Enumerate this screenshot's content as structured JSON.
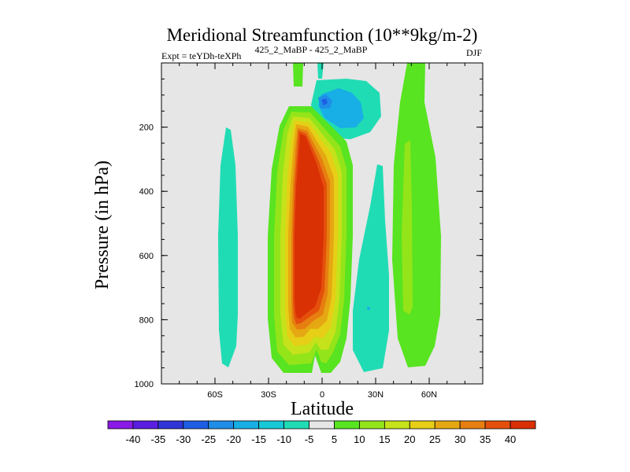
{
  "chart_data": {
    "type": "contour",
    "title": "Meridional Streamfunction (10**9kg/m-2)",
    "expt_label": "Expt = teYDh-teXPh",
    "experiment_difference": "425_2_MaBP - 425_2_MaBP",
    "season": "DJF",
    "xlabel": "Latitude",
    "ylabel": "Pressure (in hPa)",
    "xlim": [
      -90,
      90
    ],
    "ylim": [
      1000,
      0
    ],
    "xticks": [
      {
        "value": -60,
        "label": "60S"
      },
      {
        "value": -30,
        "label": "30S"
      },
      {
        "value": 0,
        "label": "0"
      },
      {
        "value": 30,
        "label": "30N"
      },
      {
        "value": 60,
        "label": "60N"
      }
    ],
    "yticks": [
      200,
      400,
      600,
      800,
      1000
    ],
    "colorbar": {
      "levels": [
        -40,
        -35,
        -30,
        -25,
        -20,
        -15,
        -10,
        -5,
        5,
        10,
        15,
        20,
        25,
        30,
        35,
        40
      ],
      "colors": [
        "#8a1ae6",
        "#5a1ee0",
        "#2f35d6",
        "#1e5ee4",
        "#1f8ee8",
        "#18aee6",
        "#17c8d6",
        "#20dcb4",
        "#e6e6e6",
        "#58e420",
        "#94e41a",
        "#c6e21a",
        "#e6cf16",
        "#e6a812",
        "#e67f10",
        "#e4500c",
        "#d93004"
      ]
    },
    "background": "#e6e6e6",
    "features": [
      {
        "name": "tropical-positive-cell",
        "lat_center": -10,
        "p_top": 130,
        "p_bottom": 960,
        "peak": 45
      },
      {
        "name": "southern-negative-cell",
        "lat_center": -52,
        "p_top": 200,
        "p_bottom": 940,
        "peak": -8
      },
      {
        "name": "upper-equatorial-negative",
        "lat_center": 3,
        "p_top": 40,
        "p_bottom": 230,
        "peak": -22
      },
      {
        "name": "subtropical-north-negative",
        "lat_center": 22,
        "p_top": 320,
        "p_bottom": 960,
        "peak": -8
      },
      {
        "name": "northern-positive-cell",
        "lat_center": 48,
        "p_top": 0,
        "p_bottom": 960,
        "peak": 12
      }
    ]
  }
}
